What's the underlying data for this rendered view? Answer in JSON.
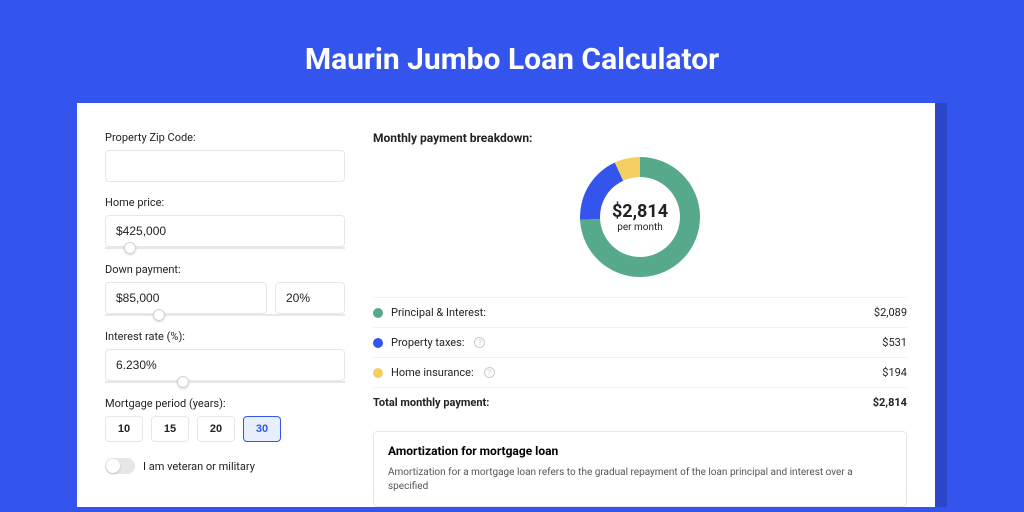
{
  "page": {
    "title": "Maurin Jumbo Loan Calculator",
    "background_color": "#3355ee",
    "shadow_color": "#2b47c8",
    "card_color": "#ffffff"
  },
  "form": {
    "zip": {
      "label": "Property Zip Code:",
      "value": ""
    },
    "home_price": {
      "label": "Home price:",
      "value": "$425,000",
      "slider_pos_pct": 8
    },
    "down_payment": {
      "label": "Down payment:",
      "amount": "$85,000",
      "percent": "20%",
      "slider_pos_pct": 20
    },
    "interest_rate": {
      "label": "Interest rate (%):",
      "value": "6.230%",
      "slider_pos_pct": 30
    },
    "mortgage_period": {
      "label": "Mortgage period (years):",
      "options": [
        "10",
        "15",
        "20",
        "30"
      ],
      "active_index": 3
    },
    "veteran": {
      "label": "I am veteran or military",
      "checked": false
    }
  },
  "breakdown": {
    "title": "Monthly payment breakdown:",
    "donut": {
      "amount": "$2,814",
      "sub": "per month",
      "slices": [
        {
          "label": "Principal & Interest",
          "value": 2089,
          "color": "#57a98b"
        },
        {
          "label": "Property taxes",
          "value": 531,
          "color": "#3355ee"
        },
        {
          "label": "Home insurance",
          "value": 194,
          "color": "#f4cf62"
        }
      ],
      "ring_thickness": 20,
      "radius": 60,
      "background_color": "#ffffff"
    },
    "rows": [
      {
        "color": "#57a98b",
        "label": "Principal & Interest:",
        "value": "$2,089",
        "info": false
      },
      {
        "color": "#3355ee",
        "label": "Property taxes:",
        "value": "$531",
        "info": true
      },
      {
        "color": "#f4cf62",
        "label": "Home insurance:",
        "value": "$194",
        "info": true
      }
    ],
    "total": {
      "label": "Total monthly payment:",
      "value": "$2,814"
    }
  },
  "amortization": {
    "title": "Amortization for mortgage loan",
    "body": "Amortization for a mortgage loan refers to the gradual repayment of the loan principal and interest over a specified"
  }
}
